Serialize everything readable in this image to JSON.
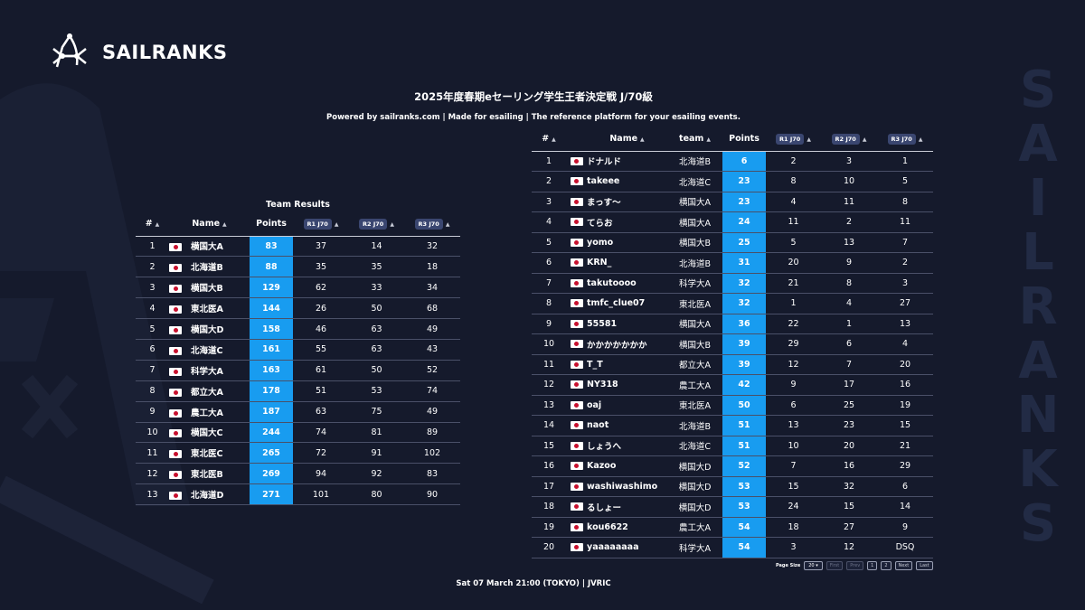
{
  "brand": {
    "name": "SAILRANKS",
    "watermark_letters": [
      "S",
      "A",
      "I",
      "L",
      "R",
      "A",
      "N",
      "K",
      "S"
    ]
  },
  "header": {
    "title": "2025年度春期eセーリング学生王者決定戦 J/70級",
    "subtitle": "Powered by sailranks.com | Made for esailing | The reference platform for your esailing events."
  },
  "team_results": {
    "title": "Team Results",
    "columns": {
      "rank": "#",
      "name": "Name",
      "points": "Points",
      "r1": "R1 J70",
      "r2": "R2 J70",
      "r3": "R3 J70"
    },
    "rows": [
      {
        "rank": "1",
        "name": "横国大A",
        "points": "83",
        "r1": "37",
        "r2": "14",
        "r3": "32"
      },
      {
        "rank": "2",
        "name": "北海道B",
        "points": "88",
        "r1": "35",
        "r2": "35",
        "r3": "18"
      },
      {
        "rank": "3",
        "name": "横国大B",
        "points": "129",
        "r1": "62",
        "r2": "33",
        "r3": "34"
      },
      {
        "rank": "4",
        "name": "東北医A",
        "points": "144",
        "r1": "26",
        "r2": "50",
        "r3": "68"
      },
      {
        "rank": "5",
        "name": "横国大D",
        "points": "158",
        "r1": "46",
        "r2": "63",
        "r3": "49"
      },
      {
        "rank": "6",
        "name": "北海道C",
        "points": "161",
        "r1": "55",
        "r2": "63",
        "r3": "43"
      },
      {
        "rank": "7",
        "name": "科学大A",
        "points": "163",
        "r1": "61",
        "r2": "50",
        "r3": "52"
      },
      {
        "rank": "8",
        "name": "都立大A",
        "points": "178",
        "r1": "51",
        "r2": "53",
        "r3": "74"
      },
      {
        "rank": "9",
        "name": "農工大A",
        "points": "187",
        "r1": "63",
        "r2": "75",
        "r3": "49"
      },
      {
        "rank": "10",
        "name": "横国大C",
        "points": "244",
        "r1": "74",
        "r2": "81",
        "r3": "89"
      },
      {
        "rank": "11",
        "name": "東北医C",
        "points": "265",
        "r1": "72",
        "r2": "91",
        "r3": "102"
      },
      {
        "rank": "12",
        "name": "東北医B",
        "points": "269",
        "r1": "94",
        "r2": "92",
        "r3": "83"
      },
      {
        "rank": "13",
        "name": "北海道D",
        "points": "271",
        "r1": "101",
        "r2": "80",
        "r3": "90"
      }
    ]
  },
  "individual_results": {
    "columns": {
      "rank": "#",
      "name": "Name",
      "team": "team",
      "points": "Points",
      "r1": "R1 J70",
      "r2": "R2 J70",
      "r3": "R3 J70"
    },
    "rows": [
      {
        "rank": "1",
        "name": "ドナルド",
        "team": "北海道B",
        "points": "6",
        "r1": "2",
        "r2": "3",
        "r3": "1"
      },
      {
        "rank": "2",
        "name": "takeee",
        "team": "北海道C",
        "points": "23",
        "r1": "8",
        "r2": "10",
        "r3": "5"
      },
      {
        "rank": "3",
        "name": "まっす〜",
        "team": "横国大A",
        "points": "23",
        "r1": "4",
        "r2": "11",
        "r3": "8"
      },
      {
        "rank": "4",
        "name": "てらお",
        "team": "横国大A",
        "points": "24",
        "r1": "11",
        "r2": "2",
        "r3": "11"
      },
      {
        "rank": "5",
        "name": "yomo",
        "team": "横国大B",
        "points": "25",
        "r1": "5",
        "r2": "13",
        "r3": "7"
      },
      {
        "rank": "6",
        "name": "KRN_",
        "team": "北海道B",
        "points": "31",
        "r1": "20",
        "r2": "9",
        "r3": "2"
      },
      {
        "rank": "7",
        "name": "takutoooo",
        "team": "科学大A",
        "points": "32",
        "r1": "21",
        "r2": "8",
        "r3": "3"
      },
      {
        "rank": "8",
        "name": "tmfc_clue07",
        "team": "東北医A",
        "points": "32",
        "r1": "1",
        "r2": "4",
        "r3": "27"
      },
      {
        "rank": "9",
        "name": "55581",
        "team": "横国大A",
        "points": "36",
        "r1": "22",
        "r2": "1",
        "r3": "13"
      },
      {
        "rank": "10",
        "name": "かかかかかかか",
        "team": "横国大B",
        "points": "39",
        "r1": "29",
        "r2": "6",
        "r3": "4"
      },
      {
        "rank": "11",
        "name": "T_T",
        "team": "都立大A",
        "points": "39",
        "r1": "12",
        "r2": "7",
        "r3": "20"
      },
      {
        "rank": "12",
        "name": "NY318",
        "team": "農工大A",
        "points": "42",
        "r1": "9",
        "r2": "17",
        "r3": "16"
      },
      {
        "rank": "13",
        "name": "oaj",
        "team": "東北医A",
        "points": "50",
        "r1": "6",
        "r2": "25",
        "r3": "19"
      },
      {
        "rank": "14",
        "name": "naot",
        "team": "北海道B",
        "points": "51",
        "r1": "13",
        "r2": "23",
        "r3": "15"
      },
      {
        "rank": "15",
        "name": "しょうへ",
        "team": "北海道C",
        "points": "51",
        "r1": "10",
        "r2": "20",
        "r3": "21"
      },
      {
        "rank": "16",
        "name": "Kazoo",
        "team": "横国大D",
        "points": "52",
        "r1": "7",
        "r2": "16",
        "r3": "29"
      },
      {
        "rank": "17",
        "name": "washiwashimo",
        "team": "横国大D",
        "points": "53",
        "r1": "15",
        "r2": "32",
        "r3": "6"
      },
      {
        "rank": "18",
        "name": "るしょー",
        "team": "横国大D",
        "points": "53",
        "r1": "24",
        "r2": "15",
        "r3": "14"
      },
      {
        "rank": "19",
        "name": "kou6622",
        "team": "農工大A",
        "points": "54",
        "r1": "18",
        "r2": "27",
        "r3": "9"
      },
      {
        "rank": "20",
        "name": "yaaaaaaaa",
        "team": "科学大A",
        "points": "54",
        "r1": "3",
        "r2": "12",
        "r3": "DSQ"
      }
    ]
  },
  "pagination": {
    "page_size_label": "Page Size",
    "page_size_value": "20",
    "first_label": "First",
    "prev_label": "Prev",
    "pages": [
      "1",
      "2"
    ],
    "next_label": "Next",
    "last_label": "Last"
  },
  "footer": {
    "text": "Sat 07 March 21:00 (TOKYO) | JVRIC"
  },
  "colors": {
    "background": "#151a2c",
    "points_highlight": "#189cf0",
    "race_pill": "#3a4670",
    "watermark": "#222b45"
  },
  "icons": {
    "logo": "sailranks-logo-icon",
    "sort": "sort-asc-icon",
    "flag": "japan-flag-icon"
  }
}
